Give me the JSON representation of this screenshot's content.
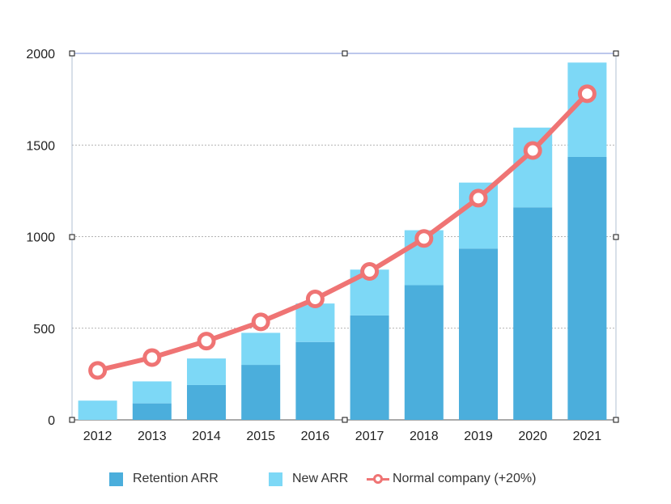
{
  "chart_data": {
    "type": "bar",
    "stacked": true,
    "categories": [
      "2012",
      "2013",
      "2014",
      "2015",
      "2016",
      "2017",
      "2018",
      "2019",
      "2020",
      "2021"
    ],
    "series": [
      {
        "name": "Retention ARR",
        "type": "bar",
        "color": "#4baedc",
        "values": [
          0,
          90,
          190,
          300,
          425,
          570,
          735,
          935,
          1160,
          1435
        ]
      },
      {
        "name": "New ARR",
        "type": "bar",
        "color": "#7dd8f6",
        "values": [
          105,
          120,
          145,
          175,
          210,
          250,
          300,
          360,
          435,
          515
        ]
      },
      {
        "name": "Normal company (+20%)",
        "type": "line",
        "color": "#ef7474",
        "values": [
          270,
          340,
          430,
          535,
          660,
          810,
          990,
          1210,
          1470,
          1780
        ]
      }
    ],
    "yticks": [
      0,
      500,
      1000,
      1500,
      2000
    ],
    "ylim": [
      0,
      2000
    ],
    "grid": true,
    "legend_position": "bottom"
  }
}
